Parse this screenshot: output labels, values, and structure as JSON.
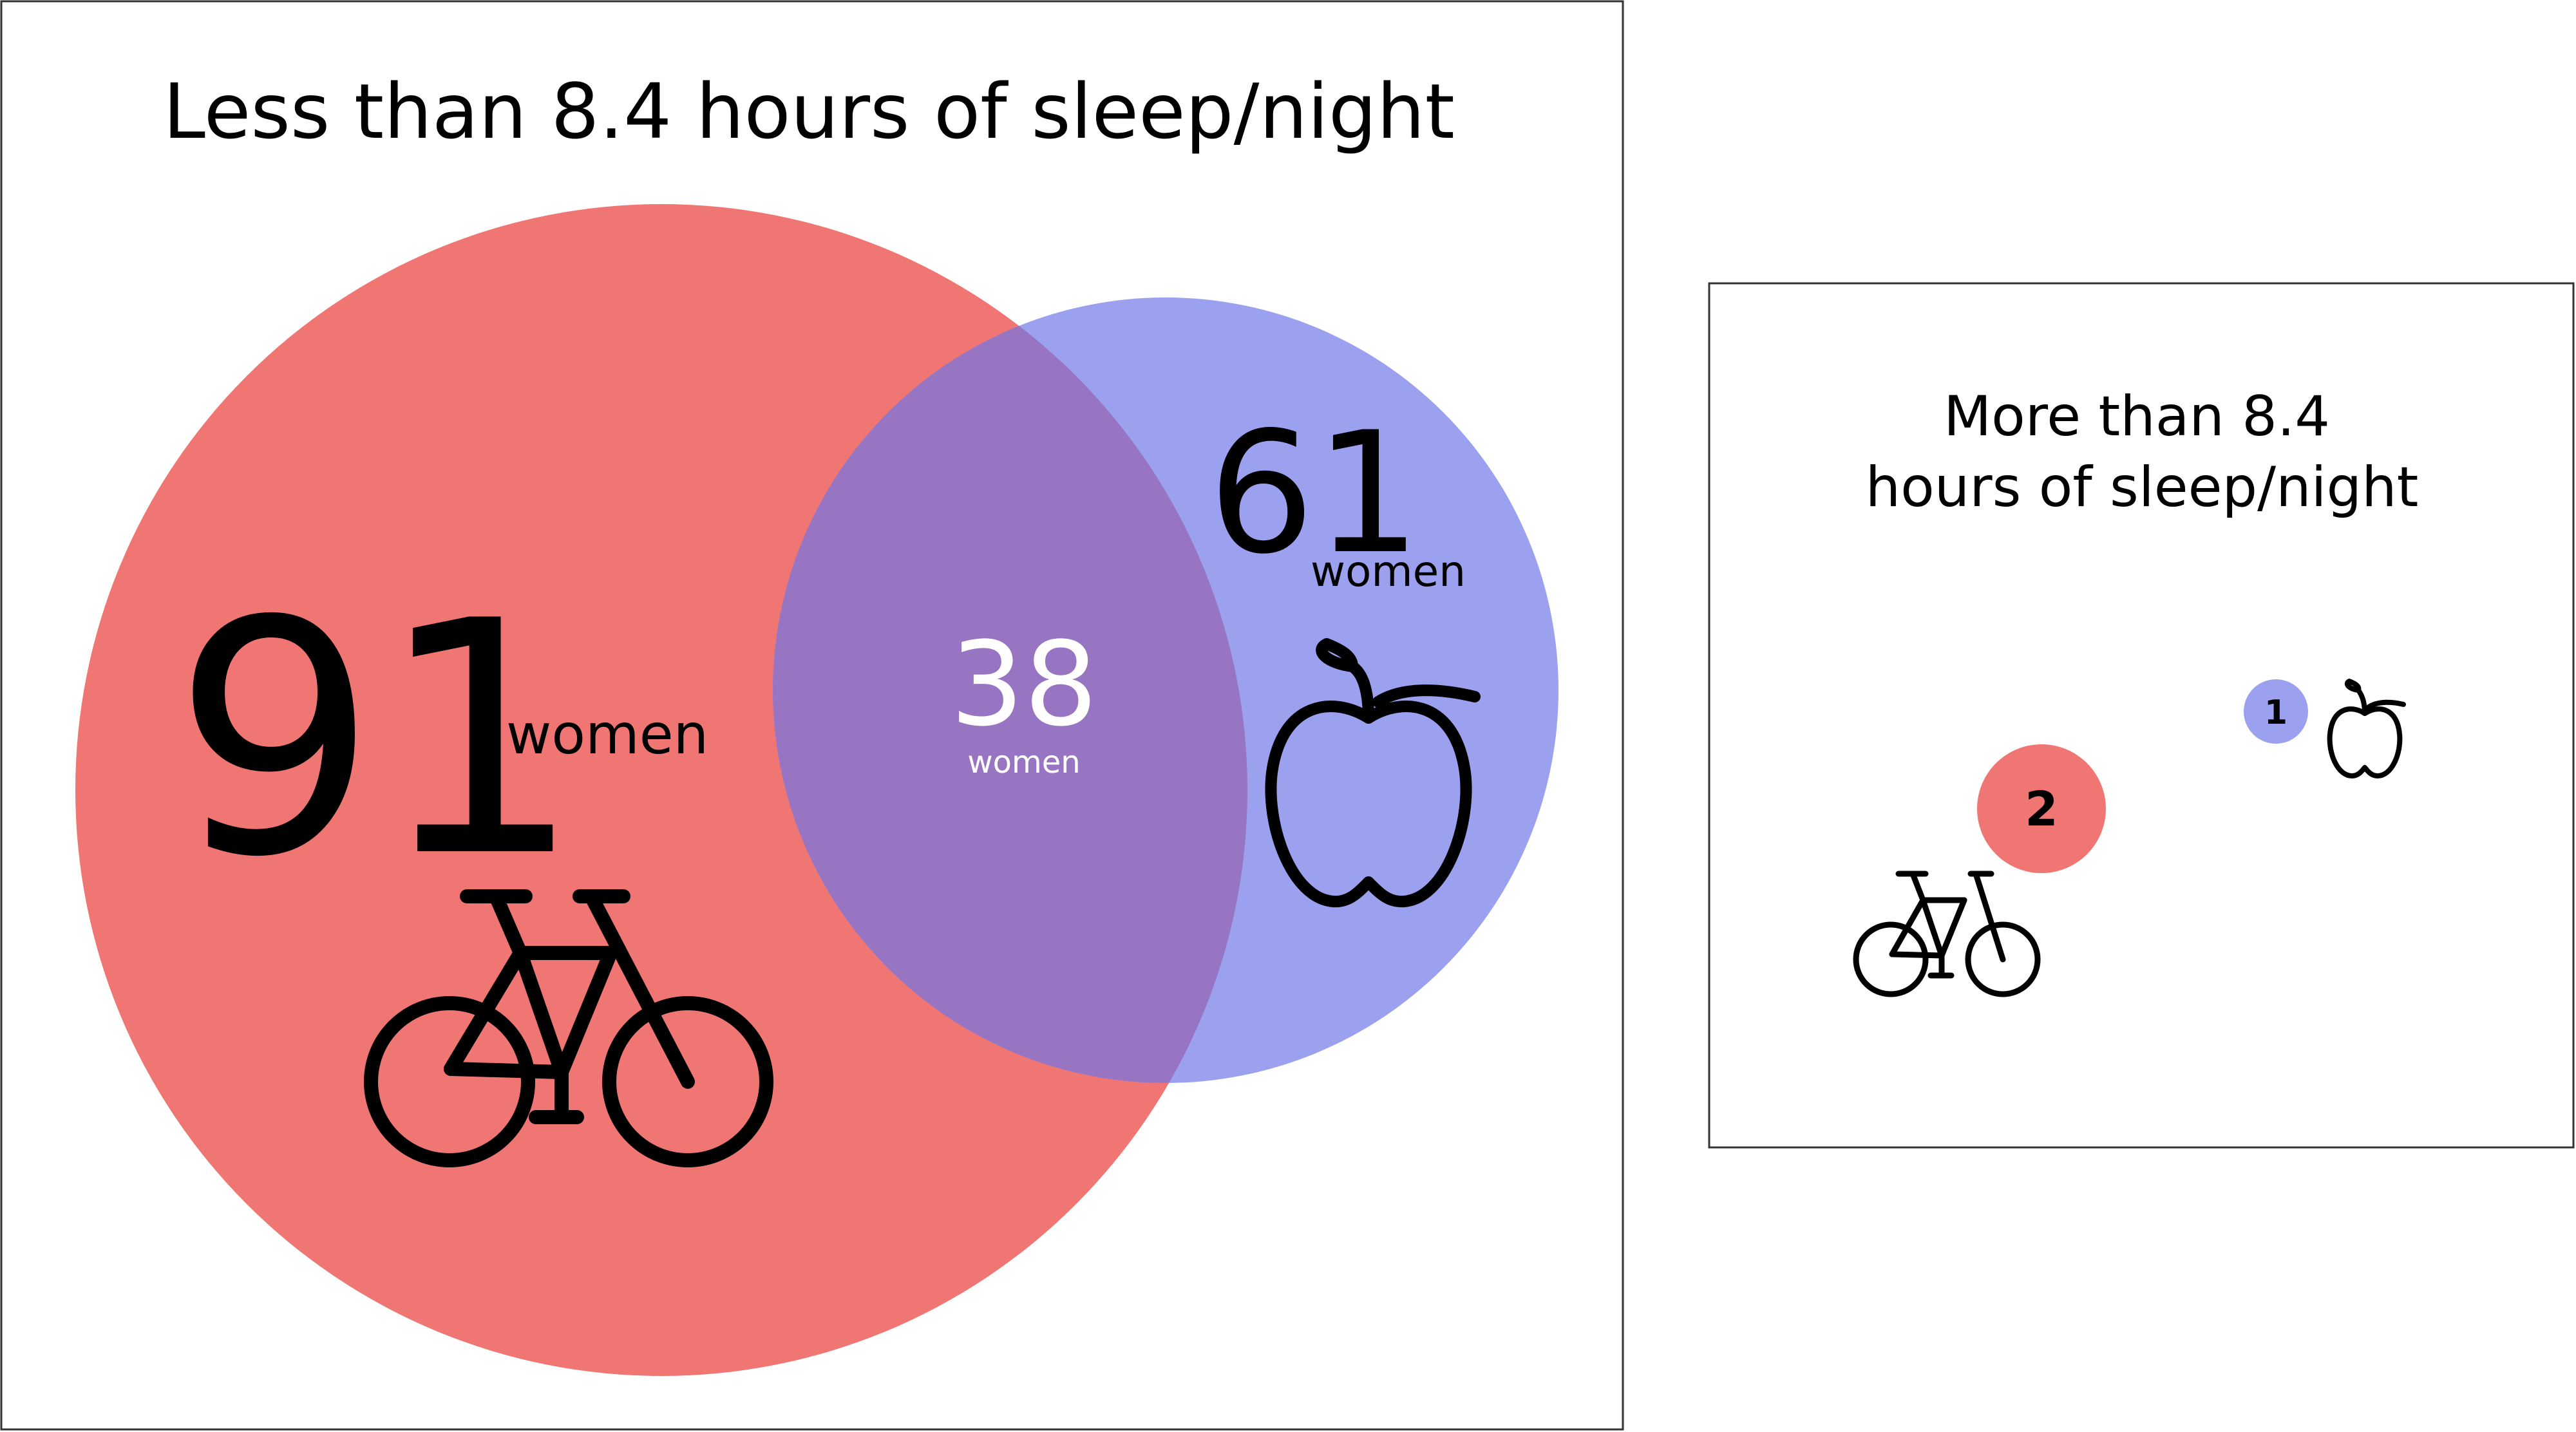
{
  "left_panel": {
    "title": "Less than 8.4 hours of sleep/night",
    "bike_only": {
      "count": "91",
      "unit": "women"
    },
    "both": {
      "count": "38",
      "unit": "women"
    },
    "apple_only": {
      "count": "61",
      "unit": "women"
    }
  },
  "right_panel": {
    "title_line1": "More than 8.4",
    "title_line2": "hours of sleep/night",
    "bike_count": "2",
    "apple_count": "1"
  },
  "colors": {
    "bike_circle": "#ef7672",
    "apple_circle": "#9ca1ef",
    "overlap": "#9875c2",
    "overlap_text": "#ffffff",
    "border": "#333333"
  },
  "icons": {
    "bike": "bicycle-icon",
    "apple": "apple-icon"
  }
}
